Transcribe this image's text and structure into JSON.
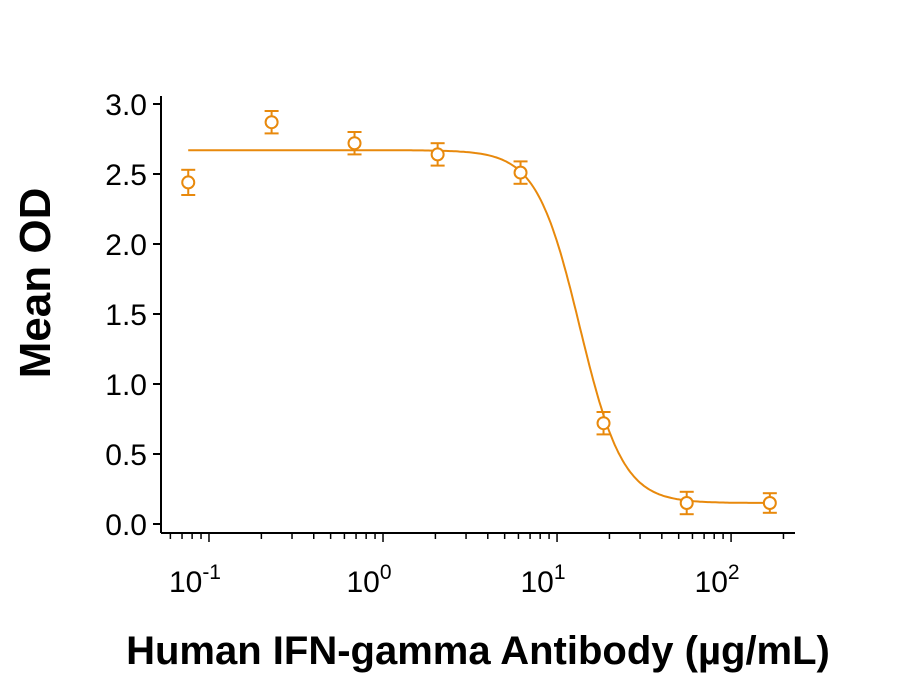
{
  "chart_data": {
    "type": "scatter",
    "title": "",
    "xlabel": "Human IFN-gamma Antibody (µg/mL)",
    "ylabel": "Mean OD",
    "xscale": "log",
    "xlim": [
      0.053,
      233
    ],
    "ylim": [
      -0.064,
      3.0
    ],
    "x_ticks": [
      {
        "value": 0.1,
        "base": "10",
        "exp": "-1"
      },
      {
        "value": 1,
        "base": "10",
        "exp": "0"
      },
      {
        "value": 10,
        "base": "10",
        "exp": "1"
      },
      {
        "value": 100,
        "base": "10",
        "exp": "2"
      }
    ],
    "y_ticks": [
      "0.0",
      "0.5",
      "1.0",
      "1.5",
      "2.0",
      "2.5",
      "3.0"
    ],
    "grid": false,
    "color": "#E8890C",
    "series": [
      {
        "x": [
          0.076,
          0.229,
          0.686,
          2.06,
          6.17,
          18.5,
          55.6,
          167
        ],
        "y": [
          2.44,
          2.87,
          2.72,
          2.64,
          2.51,
          0.72,
          0.15,
          0.15
        ],
        "error": [
          0.09,
          0.08,
          0.08,
          0.08,
          0.08,
          0.08,
          0.08,
          0.07
        ],
        "marker": "open-circle"
      }
    ],
    "fit_curve": {
      "model": "4PL",
      "top": 2.67,
      "bottom": 0.15,
      "ec50": 13.5,
      "hill": 3.5
    }
  }
}
